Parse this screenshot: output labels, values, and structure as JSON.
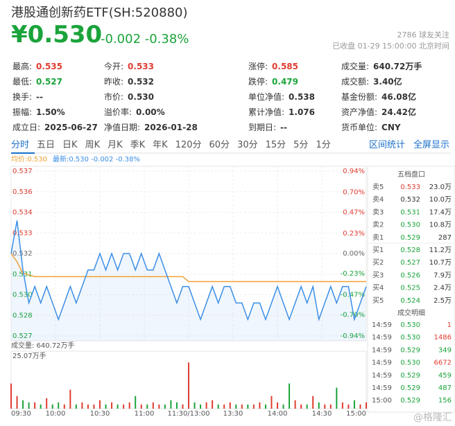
{
  "header": {
    "title": "港股通创新药ETF(SH:520880)",
    "price": "¥0.530",
    "change": "-0.002",
    "change_pct": "-0.38%",
    "followers": "2786",
    "followers_label": "球友关注",
    "status": "已收盘 01-29 15:00:00 北京时间"
  },
  "stats": [
    [
      {
        "label": "最高:",
        "value": "0.535",
        "color": "#e03c31"
      },
      {
        "label": "今开:",
        "value": "0.533",
        "color": "#e03c31"
      },
      {
        "label": "涨停:",
        "value": "0.585",
        "color": "#e03c31"
      },
      {
        "label": "成交量:",
        "value": "640.72万手",
        "color": "#333333"
      }
    ],
    [
      {
        "label": "最低:",
        "value": "0.527",
        "color": "#1aa33a"
      },
      {
        "label": "昨收:",
        "value": "0.532",
        "color": "#333333"
      },
      {
        "label": "跌停:",
        "value": "0.479",
        "color": "#1aa33a"
      },
      {
        "label": "成交额:",
        "value": "3.40亿",
        "color": "#333333"
      }
    ],
    [
      {
        "label": "换手:",
        "value": "--",
        "color": "#333333"
      },
      {
        "label": "市价:",
        "value": "0.530",
        "color": "#333333"
      },
      {
        "label": "单位净值:",
        "value": "0.538",
        "color": "#333333"
      },
      {
        "label": "基金份额:",
        "value": "46.08亿",
        "color": "#333333"
      }
    ],
    [
      {
        "label": "振幅:",
        "value": "1.50%",
        "color": "#333333"
      },
      {
        "label": "溢价率:",
        "value": "0.00%",
        "color": "#333333"
      },
      {
        "label": "累计净值:",
        "value": "1.076",
        "color": "#333333"
      },
      {
        "label": "资产净值:",
        "value": "24.42亿",
        "color": "#333333"
      }
    ],
    [
      {
        "label": "成立日:",
        "value": "2025-06-27",
        "color": "#333333"
      },
      {
        "label": "净值日期:",
        "value": "2026-01-28",
        "color": "#333333"
      },
      {
        "label": "到期日:",
        "value": "--",
        "color": "#333333"
      },
      {
        "label": "货币单位:",
        "value": "CNY",
        "color": "#333333"
      }
    ]
  ],
  "tabs": [
    "分时",
    "五日",
    "日K",
    "周K",
    "月K",
    "季K",
    "年K",
    "120分",
    "60分",
    "30分",
    "15分",
    "5分",
    "1分"
  ],
  "tab_actions": [
    "区间统计",
    "全屏显示"
  ],
  "legend": {
    "avg": "均价:0.530",
    "latest": "最新:0.530 -0.002 -0.38%"
  },
  "chart_data": [
    {
      "type": "line",
      "xlim": [
        0,
        60
      ],
      "ylim": [
        0.527,
        0.537
      ],
      "yticks": [
        0.537,
        {
          "value": 0.53575,
          "label": "0.536"
        },
        {
          "value": 0.5345,
          "label": "0.534"
        },
        {
          "value": 0.53325,
          "label": "0.533"
        },
        0.532,
        {
          "value": 0.53075,
          "label": "0.531"
        },
        {
          "value": 0.5295,
          "label": "0.530"
        },
        {
          "value": 0.52825,
          "label": "0.528"
        },
        0.527
      ],
      "y2lim": [
        -0.94,
        0.94
      ],
      "y2ticks": [
        {
          "value": 0.94,
          "label": "0.94%"
        },
        {
          "value": 0.7,
          "label": "0.70%"
        },
        {
          "value": 0.47,
          "label": "0.47%"
        },
        {
          "value": 0.23,
          "label": "0.23%"
        },
        {
          "value": 0,
          "label": "0.00%"
        },
        {
          "value": -0.23,
          "label": "-0.23%"
        },
        {
          "value": -0.47,
          "label": "-0.47%"
        },
        {
          "value": -0.7,
          "label": "-0.70%"
        },
        {
          "value": -0.94,
          "label": "-0.94%"
        }
      ],
      "series": [
        {
          "color": "#f0a030",
          "values": [
            0.532,
            0.5315,
            0.5308,
            0.5307,
            0.5306,
            0.5306,
            0.5306,
            0.5306,
            0.5306,
            0.5306,
            0.5306,
            0.5306,
            0.5306,
            0.5306,
            0.5306,
            0.5306,
            0.5306,
            0.5306,
            0.5306,
            0.5306,
            0.5306,
            0.5306,
            0.5306,
            0.5306,
            0.5306,
            0.5306,
            0.5306,
            0.5306,
            0.5306,
            0.5306,
            0.5303,
            0.5303,
            0.5303,
            0.5303,
            0.5303,
            0.5303,
            0.5303,
            0.5303,
            0.5303,
            0.5303,
            0.5303,
            0.5303,
            0.5303,
            0.5303,
            0.5303,
            0.5303,
            0.5303,
            0.5303,
            0.5303,
            0.5303,
            0.5303,
            0.5303,
            0.5303,
            0.5303,
            0.5303,
            0.5303,
            0.5303,
            0.5303,
            0.5303,
            0.5303,
            0.5303
          ]
        },
        {
          "color": "#3a8ee6",
          "values": [
            0.532,
            0.534,
            0.531,
            0.529,
            0.53,
            0.529,
            0.53,
            0.529,
            0.528,
            0.529,
            0.53,
            0.529,
            0.53,
            0.531,
            0.531,
            0.532,
            0.531,
            0.532,
            0.531,
            0.532,
            0.532,
            0.531,
            0.532,
            0.531,
            0.531,
            0.532,
            0.531,
            0.53,
            0.529,
            0.53,
            0.53,
            0.529,
            0.528,
            0.529,
            0.53,
            0.529,
            0.53,
            0.53,
            0.529,
            0.529,
            0.528,
            0.529,
            0.529,
            0.528,
            0.529,
            0.53,
            0.529,
            0.528,
            0.529,
            0.53,
            0.529,
            0.53,
            0.528,
            0.529,
            0.53,
            0.529,
            0.53,
            0.53,
            0.528,
            0.529,
            0.53
          ]
        }
      ]
    },
    {
      "type": "bar",
      "title": "成交量: 640.72万手",
      "xlim": [
        0,
        60
      ],
      "ylim": [
        0,
        25.07
      ],
      "yticks": [
        {
          "value": 25.07,
          "label": "25.07万手"
        }
      ],
      "xticks": [
        {
          "value": 0,
          "label": "09:30"
        },
        {
          "value": 7.5,
          "label": "10:00"
        },
        {
          "value": 15,
          "label": "10:30"
        },
        {
          "value": 22.5,
          "label": "11:00"
        },
        {
          "value": 30,
          "label": "11:30/13:00"
        },
        {
          "value": 37.5,
          "label": "13:30"
        },
        {
          "value": 45,
          "label": "14:00"
        },
        {
          "value": 52.5,
          "label": "14:30"
        },
        {
          "value": 60,
          "label": "15:00"
        }
      ],
      "up_color": "#e03c31",
      "down_color": "#1aa33a",
      "values": [
        12,
        6,
        4,
        3,
        3,
        2,
        5,
        2,
        3,
        2,
        9,
        2,
        3,
        2,
        2,
        4,
        2,
        3,
        2,
        2,
        3,
        6,
        2,
        2,
        3,
        2,
        2,
        4,
        3,
        2,
        22,
        3,
        2,
        3,
        4,
        2,
        2,
        3,
        2,
        2,
        2,
        2,
        3,
        2,
        6,
        3,
        2,
        12,
        4,
        2,
        2,
        6,
        3,
        2,
        2,
        10,
        3,
        2,
        4,
        2,
        3
      ]
    }
  ],
  "order_book": {
    "title": "五档盘口",
    "rows": [
      {
        "label": "卖5",
        "price": "0.533",
        "volume": "23.0万",
        "color": "#e03c31"
      },
      {
        "label": "卖4",
        "price": "0.532",
        "volume": "10.0万",
        "color": "#333333"
      },
      {
        "label": "卖3",
        "price": "0.531",
        "volume": "17.4万",
        "color": "#1aa33a"
      },
      {
        "label": "卖2",
        "price": "0.530",
        "volume": "10.8万",
        "color": "#1aa33a"
      },
      {
        "label": "卖1",
        "price": "0.529",
        "volume": "287",
        "color": "#1aa33a"
      },
      {
        "label": "买1",
        "price": "0.528",
        "volume": "11.2万",
        "color": "#1aa33a"
      },
      {
        "label": "买2",
        "price": "0.527",
        "volume": "10.7万",
        "color": "#1aa33a"
      },
      {
        "label": "买3",
        "price": "0.526",
        "volume": "7.9万",
        "color": "#1aa33a"
      },
      {
        "label": "买4",
        "price": "0.525",
        "volume": "2.4万",
        "color": "#1aa33a"
      },
      {
        "label": "买5",
        "price": "0.524",
        "volume": "2.5万",
        "color": "#1aa33a"
      }
    ]
  },
  "trades": {
    "title": "成交明细",
    "rows": [
      {
        "time": "14:59",
        "price": "0.530",
        "volume": "1",
        "color": "#e03c31"
      },
      {
        "time": "14:59",
        "price": "0.530",
        "volume": "1486",
        "color": "#e03c31"
      },
      {
        "time": "14:59",
        "price": "0.529",
        "volume": "349",
        "color": "#1aa33a"
      },
      {
        "time": "14:59",
        "price": "0.530",
        "volume": "6672",
        "color": "#e03c31"
      },
      {
        "time": "14:59",
        "price": "0.529",
        "volume": "459",
        "color": "#1aa33a"
      },
      {
        "time": "14:59",
        "price": "0.529",
        "volume": "487",
        "color": "#1aa33a"
      },
      {
        "time": "15:00",
        "price": "0.529",
        "volume": "156",
        "color": "#1aa33a"
      }
    ]
  },
  "watermark": "@格隆汇"
}
